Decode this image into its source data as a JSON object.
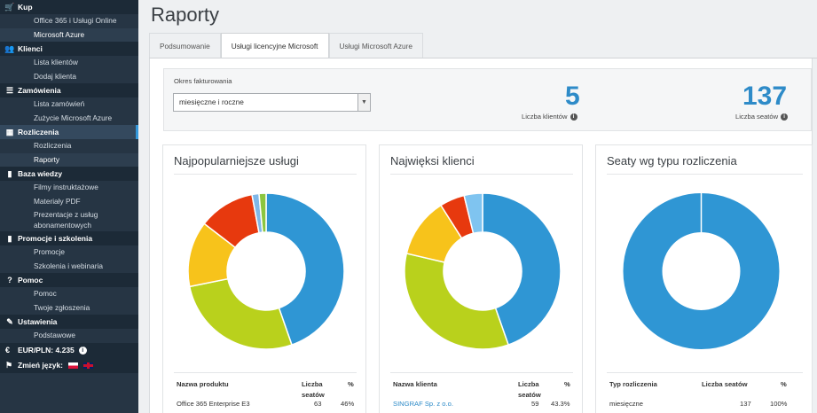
{
  "sidebar": {
    "sections": [
      {
        "name": "kup",
        "icon": "cart-icon",
        "glyph": "🛒",
        "label": "Kup",
        "items": [
          "Office 365 i Usługi Online",
          "Microsoft Azure"
        ]
      },
      {
        "name": "klienci",
        "icon": "users-icon",
        "glyph": "👥",
        "label": "Klienci",
        "items": [
          "Lista klientów",
          "Dodaj klienta"
        ]
      },
      {
        "name": "zamowienia",
        "icon": "list-icon",
        "glyph": "☰",
        "label": "Zamówienia",
        "items": [
          "Lista zamówień",
          "Zużycie Microsoft Azure"
        ]
      },
      {
        "name": "rozliczenia",
        "icon": "table-icon",
        "glyph": "▦",
        "label": "Rozliczenia",
        "items": [
          "Rozliczenia",
          "Raporty"
        ]
      },
      {
        "name": "baza-wiedzy",
        "icon": "book-icon",
        "glyph": "▮",
        "label": "Baza wiedzy",
        "items": [
          "Filmy instruktażowe",
          "Materiały PDF",
          "Prezentacje z usług abonamentowych"
        ]
      },
      {
        "name": "promocje",
        "icon": "book-icon",
        "glyph": "▮",
        "label": "Promocje i szkolenia",
        "items": [
          "Promocje",
          "Szkolenia i webinaria"
        ]
      },
      {
        "name": "pomoc",
        "icon": "question-icon",
        "glyph": "?",
        "label": "Pomoc",
        "items": [
          "Pomoc",
          "Twoje zgłoszenia"
        ]
      },
      {
        "name": "ustawienia",
        "icon": "wrench-icon",
        "glyph": "✎",
        "label": "Ustawienia",
        "items": [
          "Podstawowe"
        ]
      }
    ],
    "rate_label": "EUR/PLN: 4.235",
    "language_label": "Zmień język:"
  },
  "page": {
    "title": "Raporty",
    "tabs": [
      "Podsumowanie",
      "Usługi licencyjne Microsoft",
      "Usługi Microsoft Azure"
    ]
  },
  "filter": {
    "label": "Okres fakturowania",
    "value": "miesięczne i roczne"
  },
  "stats": {
    "clients_value": "5",
    "clients_label": "Liczba klientów",
    "seats_value": "137",
    "seats_label": "Liczba seatów"
  },
  "panels": {
    "products": {
      "title": "Najpopularniejsze usługi",
      "col_name": "Nazwa produktu",
      "col_seats": "Liczba seatów",
      "col_pct": "%",
      "row_name": "Office 365 Enterprise E3",
      "row_seats": "63",
      "row_pct": "46%"
    },
    "clients": {
      "title": "Najwięksi klienci",
      "col_name": "Nazwa klienta",
      "col_seats": "Liczba seatów",
      "col_pct": "%",
      "row_name": "SINGRAF Sp. z o.o.",
      "row_seats": "59",
      "row_pct": "43.3%"
    },
    "billing": {
      "title": "Seaty wg typu rozliczenia",
      "col_name": "Typ rozliczenia",
      "col_seats": "Liczba seatów",
      "col_pct": "%",
      "row_name": "miesięczne",
      "row_seats": "137",
      "row_pct": "100%"
    }
  },
  "chart_data": [
    {
      "type": "pie",
      "donut": true,
      "values": [
        46,
        28,
        14,
        12,
        1.5,
        1.5
      ],
      "colors": [
        "#2f96d4",
        "#b9d11c",
        "#f7c31b",
        "#e7390e",
        "#7fb7e8",
        "#8cc63f"
      ]
    },
    {
      "type": "pie",
      "donut": true,
      "values": [
        43.3,
        33,
        12,
        5,
        3.7
      ],
      "colors": [
        "#2f96d4",
        "#b9d11c",
        "#f7c31b",
        "#e7390e",
        "#7fc4f0"
      ]
    },
    {
      "type": "pie",
      "donut": true,
      "values": [
        100
      ],
      "colors": [
        "#2f96d4"
      ]
    }
  ]
}
